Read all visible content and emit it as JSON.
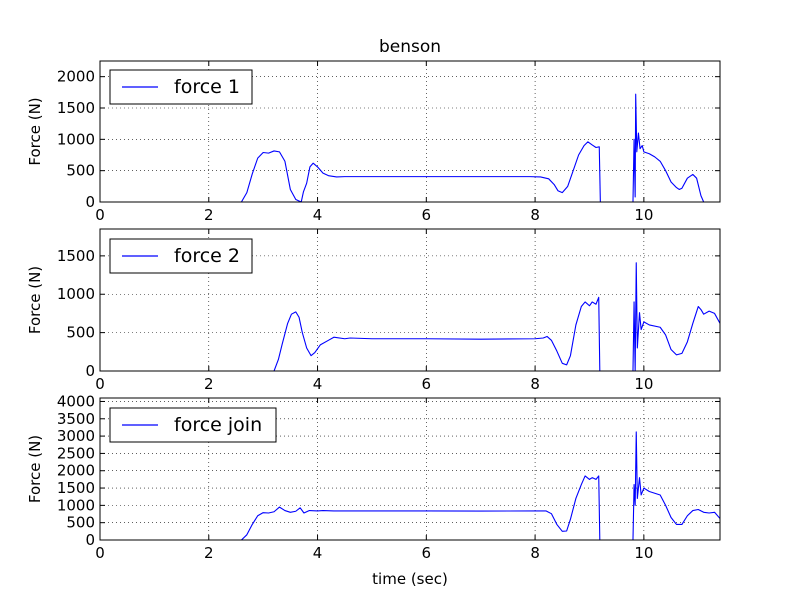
{
  "figure": {
    "title": "benson",
    "xlabel": "time (sec)"
  },
  "chart_data": [
    {
      "type": "line",
      "title": "benson",
      "xlabel": "",
      "ylabel": "Force (N)",
      "xlim": [
        0,
        11.4
      ],
      "ylim": [
        0,
        2250
      ],
      "xticks": [
        0,
        2,
        4,
        6,
        8,
        10
      ],
      "yticks": [
        0,
        500,
        1000,
        1500,
        2000
      ],
      "grid": true,
      "legend_position": "top-left",
      "series": [
        {
          "name": "force 1",
          "color": "#0000ff",
          "points": [
            [
              0,
              0
            ],
            [
              2.6,
              0
            ],
            [
              2.7,
              150
            ],
            [
              2.8,
              450
            ],
            [
              2.9,
              700
            ],
            [
              3.0,
              790
            ],
            [
              3.1,
              780
            ],
            [
              3.2,
              815
            ],
            [
              3.3,
              800
            ],
            [
              3.4,
              650
            ],
            [
              3.5,
              200
            ],
            [
              3.6,
              40
            ],
            [
              3.7,
              0
            ],
            [
              3.74,
              160
            ],
            [
              3.8,
              300
            ],
            [
              3.86,
              560
            ],
            [
              3.92,
              620
            ],
            [
              4.0,
              560
            ],
            [
              4.1,
              460
            ],
            [
              4.2,
              420
            ],
            [
              4.35,
              400
            ],
            [
              4.5,
              405
            ],
            [
              5,
              405
            ],
            [
              6,
              405
            ],
            [
              7,
              405
            ],
            [
              7.9,
              405
            ],
            [
              8.1,
              400
            ],
            [
              8.25,
              370
            ],
            [
              8.35,
              280
            ],
            [
              8.42,
              180
            ],
            [
              8.5,
              150
            ],
            [
              8.6,
              250
            ],
            [
              8.7,
              500
            ],
            [
              8.8,
              750
            ],
            [
              8.9,
              900
            ],
            [
              8.97,
              960
            ],
            [
              9.05,
              910
            ],
            [
              9.12,
              870
            ],
            [
              9.18,
              880
            ],
            [
              9.2,
              0
            ],
            [
              9.8,
              0
            ],
            [
              9.82,
              1000
            ],
            [
              9.84,
              80
            ],
            [
              9.85,
              1720
            ],
            [
              9.87,
              800
            ],
            [
              9.9,
              1100
            ],
            [
              9.93,
              850
            ],
            [
              9.97,
              900
            ],
            [
              10.0,
              800
            ],
            [
              10.1,
              770
            ],
            [
              10.2,
              720
            ],
            [
              10.3,
              650
            ],
            [
              10.4,
              500
            ],
            [
              10.5,
              320
            ],
            [
              10.6,
              230
            ],
            [
              10.65,
              200
            ],
            [
              10.7,
              220
            ],
            [
              10.8,
              380
            ],
            [
              10.9,
              440
            ],
            [
              10.97,
              380
            ],
            [
              11.05,
              100
            ],
            [
              11.1,
              0
            ],
            [
              11.4,
              0
            ]
          ]
        }
      ]
    },
    {
      "type": "line",
      "xlabel": "",
      "ylabel": "Force (N)",
      "xlim": [
        0,
        11.4
      ],
      "ylim": [
        0,
        1850
      ],
      "xticks": [
        0,
        2,
        4,
        6,
        8,
        10
      ],
      "yticks": [
        0,
        500,
        1000,
        1500
      ],
      "grid": true,
      "legend_position": "top-left",
      "series": [
        {
          "name": "force 2",
          "color": "#0000ff",
          "points": [
            [
              0,
              0
            ],
            [
              3.2,
              0
            ],
            [
              3.28,
              150
            ],
            [
              3.35,
              350
            ],
            [
              3.45,
              620
            ],
            [
              3.52,
              740
            ],
            [
              3.6,
              770
            ],
            [
              3.66,
              700
            ],
            [
              3.72,
              500
            ],
            [
              3.8,
              300
            ],
            [
              3.88,
              200
            ],
            [
              3.95,
              240
            ],
            [
              4.05,
              340
            ],
            [
              4.2,
              400
            ],
            [
              4.3,
              440
            ],
            [
              4.5,
              420
            ],
            [
              4.6,
              430
            ],
            [
              5,
              420
            ],
            [
              6,
              420
            ],
            [
              7,
              415
            ],
            [
              8.0,
              420
            ],
            [
              8.15,
              430
            ],
            [
              8.22,
              450
            ],
            [
              8.3,
              400
            ],
            [
              8.4,
              260
            ],
            [
              8.5,
              100
            ],
            [
              8.58,
              80
            ],
            [
              8.65,
              200
            ],
            [
              8.75,
              600
            ],
            [
              8.85,
              840
            ],
            [
              8.92,
              900
            ],
            [
              9.0,
              850
            ],
            [
              9.05,
              900
            ],
            [
              9.12,
              870
            ],
            [
              9.17,
              960
            ],
            [
              9.19,
              0
            ],
            [
              9.8,
              0
            ],
            [
              9.82,
              900
            ],
            [
              9.84,
              0
            ],
            [
              9.86,
              1410
            ],
            [
              9.88,
              300
            ],
            [
              9.92,
              760
            ],
            [
              9.95,
              540
            ],
            [
              10.0,
              640
            ],
            [
              10.1,
              600
            ],
            [
              10.3,
              570
            ],
            [
              10.4,
              470
            ],
            [
              10.5,
              280
            ],
            [
              10.6,
              210
            ],
            [
              10.7,
              230
            ],
            [
              10.8,
              380
            ],
            [
              10.9,
              620
            ],
            [
              11.0,
              840
            ],
            [
              11.05,
              800
            ],
            [
              11.1,
              740
            ],
            [
              11.2,
              780
            ],
            [
              11.3,
              750
            ],
            [
              11.4,
              620
            ]
          ]
        }
      ]
    },
    {
      "type": "line",
      "xlabel": "time (sec)",
      "ylabel": "Force (N)",
      "xlim": [
        0,
        11.4
      ],
      "ylim": [
        0,
        4100
      ],
      "xticks": [
        0,
        2,
        4,
        6,
        8,
        10
      ],
      "yticks": [
        0,
        500,
        1000,
        1500,
        2000,
        2500,
        3000,
        3500,
        4000
      ],
      "grid": true,
      "legend_position": "top-left",
      "series": [
        {
          "name": "force join",
          "color": "#0000ff",
          "points": [
            [
              0,
              0
            ],
            [
              2.6,
              0
            ],
            [
              2.7,
              150
            ],
            [
              2.8,
              450
            ],
            [
              2.9,
              700
            ],
            [
              3.0,
              790
            ],
            [
              3.1,
              780
            ],
            [
              3.2,
              815
            ],
            [
              3.3,
              950
            ],
            [
              3.4,
              850
            ],
            [
              3.5,
              800
            ],
            [
              3.6,
              830
            ],
            [
              3.68,
              930
            ],
            [
              3.75,
              780
            ],
            [
              3.85,
              850
            ],
            [
              4.0,
              840
            ],
            [
              4.1,
              850
            ],
            [
              4.3,
              840
            ],
            [
              5,
              840
            ],
            [
              6,
              840
            ],
            [
              7,
              835
            ],
            [
              8,
              840
            ],
            [
              8.2,
              840
            ],
            [
              8.3,
              760
            ],
            [
              8.4,
              450
            ],
            [
              8.5,
              250
            ],
            [
              8.58,
              260
            ],
            [
              8.65,
              600
            ],
            [
              8.75,
              1200
            ],
            [
              8.85,
              1600
            ],
            [
              8.92,
              1850
            ],
            [
              9.0,
              1750
            ],
            [
              9.05,
              1800
            ],
            [
              9.12,
              1750
            ],
            [
              9.17,
              1850
            ],
            [
              9.19,
              0
            ],
            [
              9.8,
              0
            ],
            [
              9.82,
              1600
            ],
            [
              9.84,
              1000
            ],
            [
              9.86,
              3120
            ],
            [
              9.88,
              1200
            ],
            [
              9.92,
              1800
            ],
            [
              9.95,
              1300
            ],
            [
              10.0,
              1500
            ],
            [
              10.1,
              1400
            ],
            [
              10.3,
              1300
            ],
            [
              10.4,
              1000
            ],
            [
              10.5,
              650
            ],
            [
              10.6,
              450
            ],
            [
              10.7,
              450
            ],
            [
              10.8,
              700
            ],
            [
              10.9,
              850
            ],
            [
              11.0,
              880
            ],
            [
              11.1,
              800
            ],
            [
              11.2,
              780
            ],
            [
              11.3,
              800
            ],
            [
              11.4,
              620
            ]
          ]
        }
      ]
    }
  ]
}
